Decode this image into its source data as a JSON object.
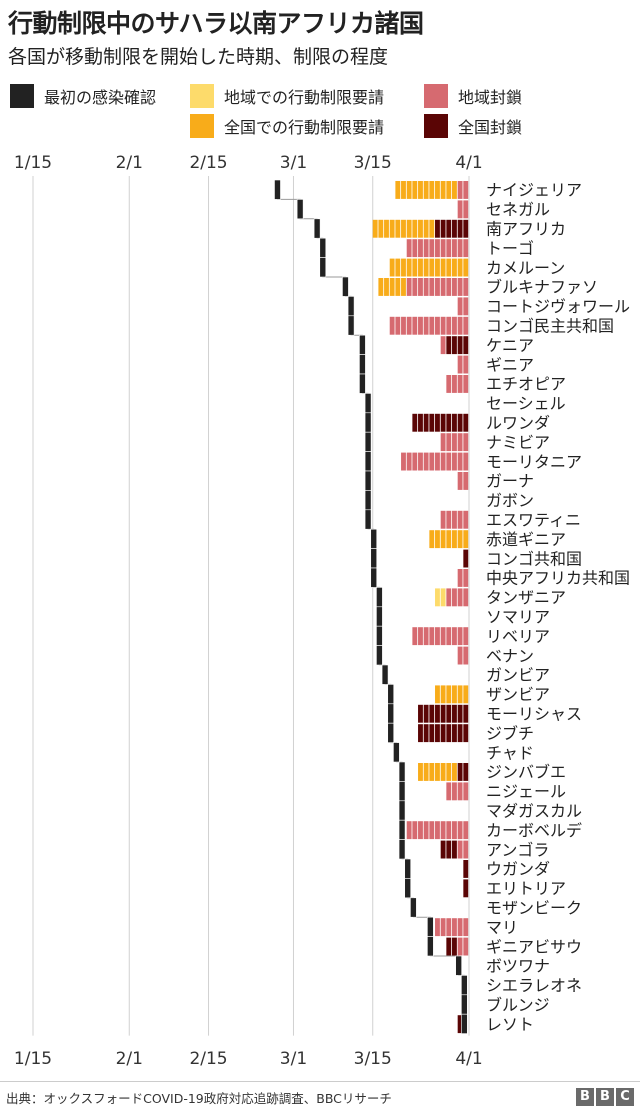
{
  "title": "行動制限中のサハラ以南アフリカ諸国",
  "subtitle": "各国が移動制限を開始した時期、制限の程度",
  "source": "出典：オックスフォードCOVID-19政府対応追跡調査、BBCリサーチ",
  "logo": "BBC",
  "colors": {
    "first_case": "#222222",
    "regional_request": "#fddb6b",
    "national_request": "#f8ac1a",
    "regional_lockdown": "#d66a70",
    "national_lockdown": "#5a0505",
    "grid": "#d0d0d0"
  },
  "legend": [
    {
      "key": "first_case",
      "label": "最初の感染確認"
    },
    {
      "key": "regional_request",
      "label": "地域での行動制限要請"
    },
    {
      "key": "national_request",
      "label": "全国での行動制限要請"
    },
    {
      "key": "regional_lockdown",
      "label": "地域封鎖"
    },
    {
      "key": "national_lockdown",
      "label": "全国封鎖"
    }
  ],
  "chart_data": {
    "type": "timeline",
    "title": "行動制限中のサハラ以南アフリカ諸国",
    "subtitle": "各国が移動制限を開始した時期、制限の程度",
    "x_axis": {
      "start": "2020-01-15",
      "end": "2020-04-01",
      "tick_labels": [
        "1/15",
        "2/1",
        "2/15",
        "3/1",
        "3/15",
        "4/1"
      ],
      "tick_dates": [
        "2020-01-15",
        "2020-02-01",
        "2020-02-15",
        "2020-03-01",
        "2020-03-15",
        "2020-04-01"
      ]
    },
    "grid": true,
    "countries": [
      {
        "name": "ナイジェリア",
        "first_case": "2020-02-27",
        "measures": [
          {
            "type": "national_request",
            "start": "2020-03-19",
            "end": "2020-03-30"
          },
          {
            "type": "regional_lockdown",
            "start": "2020-03-30",
            "end": "2020-04-01"
          }
        ]
      },
      {
        "name": "セネガル",
        "first_case": "2020-03-02",
        "measures": [
          {
            "type": "regional_lockdown",
            "start": "2020-03-30",
            "end": "2020-04-01"
          }
        ]
      },
      {
        "name": "南アフリカ",
        "first_case": "2020-03-05",
        "measures": [
          {
            "type": "national_request",
            "start": "2020-03-15",
            "end": "2020-03-26"
          },
          {
            "type": "national_lockdown",
            "start": "2020-03-26",
            "end": "2020-04-01"
          }
        ]
      },
      {
        "name": "トーゴ",
        "first_case": "2020-03-06",
        "measures": [
          {
            "type": "regional_lockdown",
            "start": "2020-03-21",
            "end": "2020-04-01"
          }
        ]
      },
      {
        "name": "カメルーン",
        "first_case": "2020-03-06",
        "measures": [
          {
            "type": "national_request",
            "start": "2020-03-18",
            "end": "2020-04-01"
          }
        ]
      },
      {
        "name": "ブルキナファソ",
        "first_case": "2020-03-10",
        "measures": [
          {
            "type": "national_request",
            "start": "2020-03-16",
            "end": "2020-03-21"
          },
          {
            "type": "regional_lockdown",
            "start": "2020-03-21",
            "end": "2020-04-01"
          }
        ]
      },
      {
        "name": "コートジヴォワール",
        "first_case": "2020-03-11",
        "measures": [
          {
            "type": "regional_lockdown",
            "start": "2020-03-30",
            "end": "2020-04-01"
          }
        ]
      },
      {
        "name": "コンゴ民主共和国",
        "first_case": "2020-03-11",
        "measures": [
          {
            "type": "regional_lockdown",
            "start": "2020-03-18",
            "end": "2020-04-01"
          }
        ]
      },
      {
        "name": "ケニア",
        "first_case": "2020-03-13",
        "measures": [
          {
            "type": "regional_lockdown",
            "start": "2020-03-27",
            "end": "2020-03-28"
          },
          {
            "type": "national_lockdown",
            "start": "2020-03-28",
            "end": "2020-04-01"
          }
        ]
      },
      {
        "name": "ギニア",
        "first_case": "2020-03-13",
        "measures": [
          {
            "type": "regional_lockdown",
            "start": "2020-03-30",
            "end": "2020-04-01"
          }
        ]
      },
      {
        "name": "エチオピア",
        "first_case": "2020-03-13",
        "measures": [
          {
            "type": "regional_lockdown",
            "start": "2020-03-28",
            "end": "2020-04-01"
          }
        ]
      },
      {
        "name": "セーシェル",
        "first_case": "2020-03-14",
        "measures": []
      },
      {
        "name": "ルワンダ",
        "first_case": "2020-03-14",
        "measures": [
          {
            "type": "national_lockdown",
            "start": "2020-03-22",
            "end": "2020-04-01"
          }
        ]
      },
      {
        "name": "ナミビア",
        "first_case": "2020-03-14",
        "measures": [
          {
            "type": "regional_lockdown",
            "start": "2020-03-27",
            "end": "2020-04-01"
          }
        ]
      },
      {
        "name": "モーリタニア",
        "first_case": "2020-03-14",
        "measures": [
          {
            "type": "regional_lockdown",
            "start": "2020-03-20",
            "end": "2020-04-01"
          }
        ]
      },
      {
        "name": "ガーナ",
        "first_case": "2020-03-14",
        "measures": [
          {
            "type": "regional_lockdown",
            "start": "2020-03-30",
            "end": "2020-04-01"
          }
        ]
      },
      {
        "name": "ガボン",
        "first_case": "2020-03-14",
        "measures": []
      },
      {
        "name": "エスワティニ",
        "first_case": "2020-03-14",
        "measures": [
          {
            "type": "regional_lockdown",
            "start": "2020-03-27",
            "end": "2020-04-01"
          }
        ]
      },
      {
        "name": "赤道ギニア",
        "first_case": "2020-03-15",
        "measures": [
          {
            "type": "national_request",
            "start": "2020-03-25",
            "end": "2020-04-01"
          }
        ]
      },
      {
        "name": "コンゴ共和国",
        "first_case": "2020-03-15",
        "measures": [
          {
            "type": "national_lockdown",
            "start": "2020-03-31",
            "end": "2020-04-01"
          }
        ]
      },
      {
        "name": "中央アフリカ共和国",
        "first_case": "2020-03-15",
        "measures": [
          {
            "type": "regional_lockdown",
            "start": "2020-03-30",
            "end": "2020-04-01"
          }
        ]
      },
      {
        "name": "タンザニア",
        "first_case": "2020-03-16",
        "measures": [
          {
            "type": "regional_request",
            "start": "2020-03-26",
            "end": "2020-03-28"
          },
          {
            "type": "regional_lockdown",
            "start": "2020-03-28",
            "end": "2020-04-01"
          }
        ]
      },
      {
        "name": "ソマリア",
        "first_case": "2020-03-16",
        "measures": []
      },
      {
        "name": "リベリア",
        "first_case": "2020-03-16",
        "measures": [
          {
            "type": "regional_lockdown",
            "start": "2020-03-22",
            "end": "2020-04-01"
          }
        ]
      },
      {
        "name": "ベナン",
        "first_case": "2020-03-16",
        "measures": [
          {
            "type": "regional_lockdown",
            "start": "2020-03-30",
            "end": "2020-04-01"
          }
        ]
      },
      {
        "name": "ガンビア",
        "first_case": "2020-03-17",
        "measures": []
      },
      {
        "name": "ザンビア",
        "first_case": "2020-03-18",
        "measures": [
          {
            "type": "national_request",
            "start": "2020-03-26",
            "end": "2020-04-01"
          }
        ]
      },
      {
        "name": "モーリシャス",
        "first_case": "2020-03-18",
        "measures": [
          {
            "type": "national_lockdown",
            "start": "2020-03-23",
            "end": "2020-04-01"
          }
        ]
      },
      {
        "name": "ジブチ",
        "first_case": "2020-03-18",
        "measures": [
          {
            "type": "national_lockdown",
            "start": "2020-03-23",
            "end": "2020-04-01"
          }
        ]
      },
      {
        "name": "チャド",
        "first_case": "2020-03-19",
        "measures": []
      },
      {
        "name": "ジンバブエ",
        "first_case": "2020-03-20",
        "measures": [
          {
            "type": "national_request",
            "start": "2020-03-23",
            "end": "2020-03-30"
          },
          {
            "type": "national_lockdown",
            "start": "2020-03-30",
            "end": "2020-04-01"
          }
        ]
      },
      {
        "name": "ニジェール",
        "first_case": "2020-03-20",
        "measures": [
          {
            "type": "regional_lockdown",
            "start": "2020-03-28",
            "end": "2020-04-01"
          }
        ]
      },
      {
        "name": "マダガスカル",
        "first_case": "2020-03-20",
        "measures": []
      },
      {
        "name": "カーボベルデ",
        "first_case": "2020-03-20",
        "measures": [
          {
            "type": "regional_lockdown",
            "start": "2020-03-21",
            "end": "2020-04-01"
          }
        ]
      },
      {
        "name": "アンゴラ",
        "first_case": "2020-03-20",
        "measures": [
          {
            "type": "national_lockdown",
            "start": "2020-03-27",
            "end": "2020-03-30"
          },
          {
            "type": "regional_lockdown",
            "start": "2020-03-30",
            "end": "2020-04-01"
          }
        ]
      },
      {
        "name": "ウガンダ",
        "first_case": "2020-03-21",
        "measures": [
          {
            "type": "national_lockdown",
            "start": "2020-03-31",
            "end": "2020-04-01"
          }
        ]
      },
      {
        "name": "エリトリア",
        "first_case": "2020-03-21",
        "measures": [
          {
            "type": "national_lockdown",
            "start": "2020-03-31",
            "end": "2020-04-01"
          }
        ]
      },
      {
        "name": "モザンビーク",
        "first_case": "2020-03-22",
        "measures": []
      },
      {
        "name": "マリ",
        "first_case": "2020-03-25",
        "measures": [
          {
            "type": "regional_lockdown",
            "start": "2020-03-26",
            "end": "2020-04-01"
          }
        ]
      },
      {
        "name": "ギニアビサウ",
        "first_case": "2020-03-25",
        "measures": [
          {
            "type": "national_lockdown",
            "start": "2020-03-28",
            "end": "2020-03-30"
          },
          {
            "type": "regional_lockdown",
            "start": "2020-03-30",
            "end": "2020-04-01"
          }
        ]
      },
      {
        "name": "ボツワナ",
        "first_case": "2020-03-30",
        "measures": []
      },
      {
        "name": "シエラレオネ",
        "first_case": "2020-03-31",
        "measures": []
      },
      {
        "name": "ブルンジ",
        "first_case": "2020-03-31",
        "measures": []
      },
      {
        "name": "レソト",
        "first_case": "2020-03-31",
        "measures": [
          {
            "type": "national_lockdown",
            "start": "2020-03-30",
            "end": "2020-03-31"
          }
        ]
      }
    ]
  }
}
